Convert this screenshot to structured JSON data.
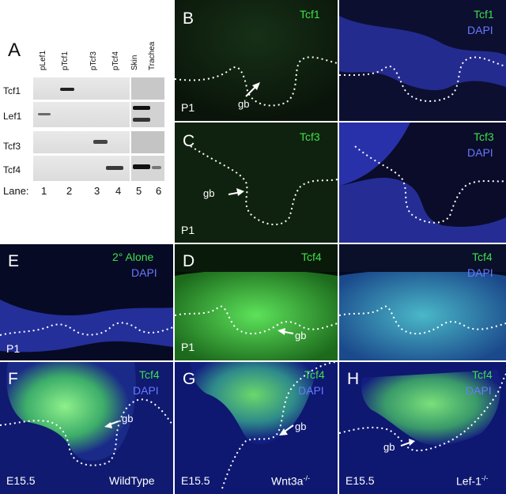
{
  "panelA": {
    "letter": "A",
    "columns": [
      "pLef1",
      "pTcf1",
      "pTcf3",
      "pTcf4",
      "Skin",
      "Trachea"
    ],
    "rows": [
      "Tcf1",
      "Lef1",
      "Tcf3",
      "Tcf4"
    ],
    "lane_label": "Lane:",
    "lane_numbers": [
      "1",
      "2",
      "3",
      "4",
      "5",
      "6"
    ]
  },
  "panels": {
    "B": {
      "letter": "B",
      "marker": "Tcf1",
      "stage": "P1",
      "arrow": "gb"
    },
    "B2": {
      "marker": "Tcf1",
      "counter": "DAPI"
    },
    "C": {
      "letter": "C",
      "marker": "Tcf3",
      "stage": "P1",
      "arrow": "gb"
    },
    "C2": {
      "marker": "Tcf3",
      "counter": "DAPI"
    },
    "E": {
      "letter": "E",
      "marker": "2° Alone",
      "counter": "DAPI",
      "stage": "P1"
    },
    "D": {
      "letter": "D",
      "marker": "Tcf4",
      "stage": "P1",
      "arrow": "gb"
    },
    "D2": {
      "marker": "Tcf4",
      "counter": "DAPI"
    },
    "F": {
      "letter": "F",
      "marker": "Tcf4",
      "counter": "DAPI",
      "stage": "E15.5",
      "genotype": "WildType",
      "arrow": "gb"
    },
    "G": {
      "letter": "G",
      "marker": "Tcf4",
      "counter": "DAPI",
      "stage": "E15.5",
      "genotype": "Wnt3a",
      "genotype_sup": "-/-",
      "arrow": "gb"
    },
    "H": {
      "letter": "H",
      "marker": "Tcf4",
      "counter": "DAPI",
      "stage": "E15.5",
      "genotype": "Lef-1",
      "genotype_sup": "-/-",
      "arrow": "gb"
    }
  }
}
